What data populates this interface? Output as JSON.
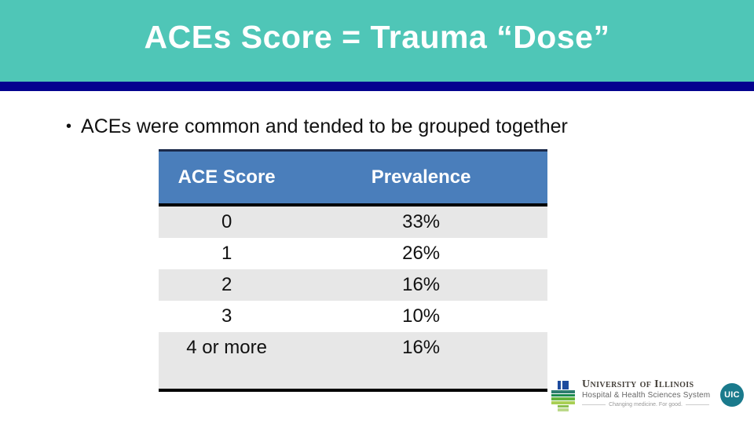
{
  "slide": {
    "title": "ACEs Score = Trauma “Dose”",
    "bullet_glyph": "•",
    "bullet": "ACEs were common and tended to be grouped together"
  },
  "table": {
    "columns": [
      "ACE Score",
      "Prevalence"
    ],
    "rows": [
      {
        "score": "0",
        "prevalence": "33%"
      },
      {
        "score": "1",
        "prevalence": "26%"
      },
      {
        "score": "2",
        "prevalence": "16%"
      },
      {
        "score": "3",
        "prevalence": "10%"
      },
      {
        "score": "4 or more",
        "prevalence": "16%"
      }
    ]
  },
  "footer": {
    "org_name": "University of Illinois",
    "org_subtitle": "Hospital & Health Sciences System",
    "tagline": "Changing medicine. For good.",
    "uic_badge": "UIC"
  },
  "colors": {
    "teal_band": "#4FC6B7",
    "navy_stripe": "#04038F",
    "table_header_blue": "#4A7EBB",
    "row_gray": "#E7E7E7",
    "border_black": "#000000",
    "uic_badge_teal": "#1A7A8C",
    "title_text": "#FFFFFF",
    "body_text": "#111111"
  }
}
